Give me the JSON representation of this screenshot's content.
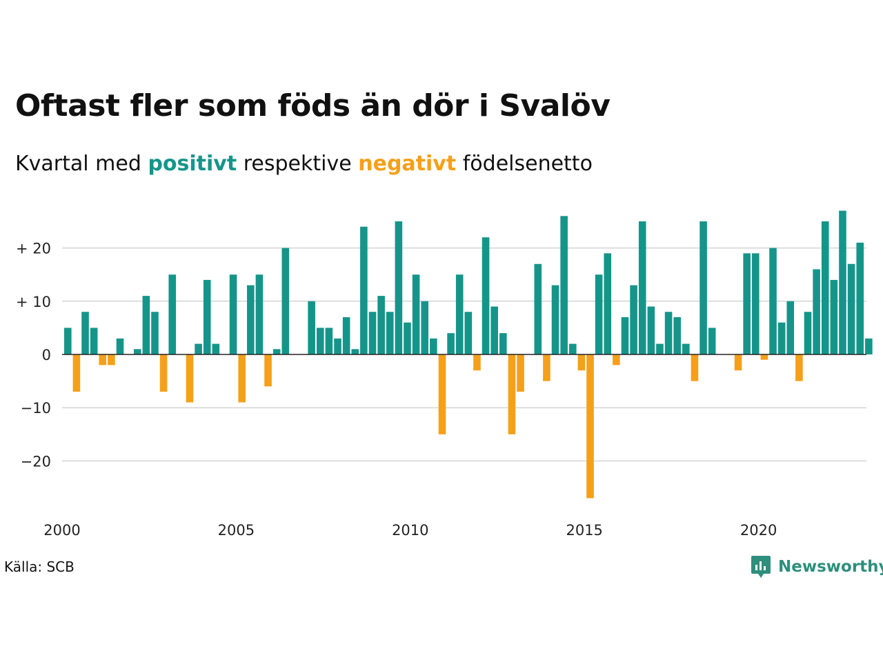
{
  "title": "Oftast fler som föds än dör i Svalöv",
  "subtitle": {
    "prefix": "Kvartal med",
    "positive_word": "positivt",
    "middle": "respektive",
    "negative_word": "negativt",
    "suffix": "födelsenetto"
  },
  "source": "Källa: SCB",
  "brand": "Newsworthy",
  "colors": {
    "positive": "#15958a",
    "negative": "#f5a01a",
    "grid": "#dddddd",
    "zero_line": "#222222"
  },
  "chart_data": {
    "type": "bar",
    "ylim": [
      -29,
      29
    ],
    "yticks": [
      20,
      10,
      0,
      -10,
      -20
    ],
    "ytick_labels": [
      "+ 20",
      "+ 10",
      "0",
      "−10",
      "−20"
    ],
    "xticks": [
      2000,
      2005,
      2010,
      2015,
      2020
    ],
    "grid": true,
    "start_year": 2000,
    "values": [
      5,
      -7,
      8,
      5,
      -2,
      -2,
      3,
      0,
      1,
      11,
      8,
      -7,
      15,
      0,
      -9,
      2,
      14,
      2,
      0,
      15,
      -9,
      13,
      15,
      -6,
      1,
      20,
      0,
      0,
      10,
      5,
      5,
      3,
      7,
      1,
      24,
      8,
      11,
      8,
      25,
      6,
      15,
      10,
      3,
      -15,
      4,
      15,
      8,
      -3,
      22,
      9,
      4,
      -15,
      -7,
      0,
      17,
      -5,
      13,
      26,
      2,
      -3,
      -27,
      15,
      19,
      -2,
      7,
      13,
      25,
      9,
      2,
      8,
      7,
      2,
      -5,
      25,
      5,
      0,
      0,
      -3,
      19,
      19,
      -1,
      20,
      6,
      10,
      -5,
      8,
      16,
      25,
      14,
      27,
      17,
      21,
      3
    ]
  }
}
